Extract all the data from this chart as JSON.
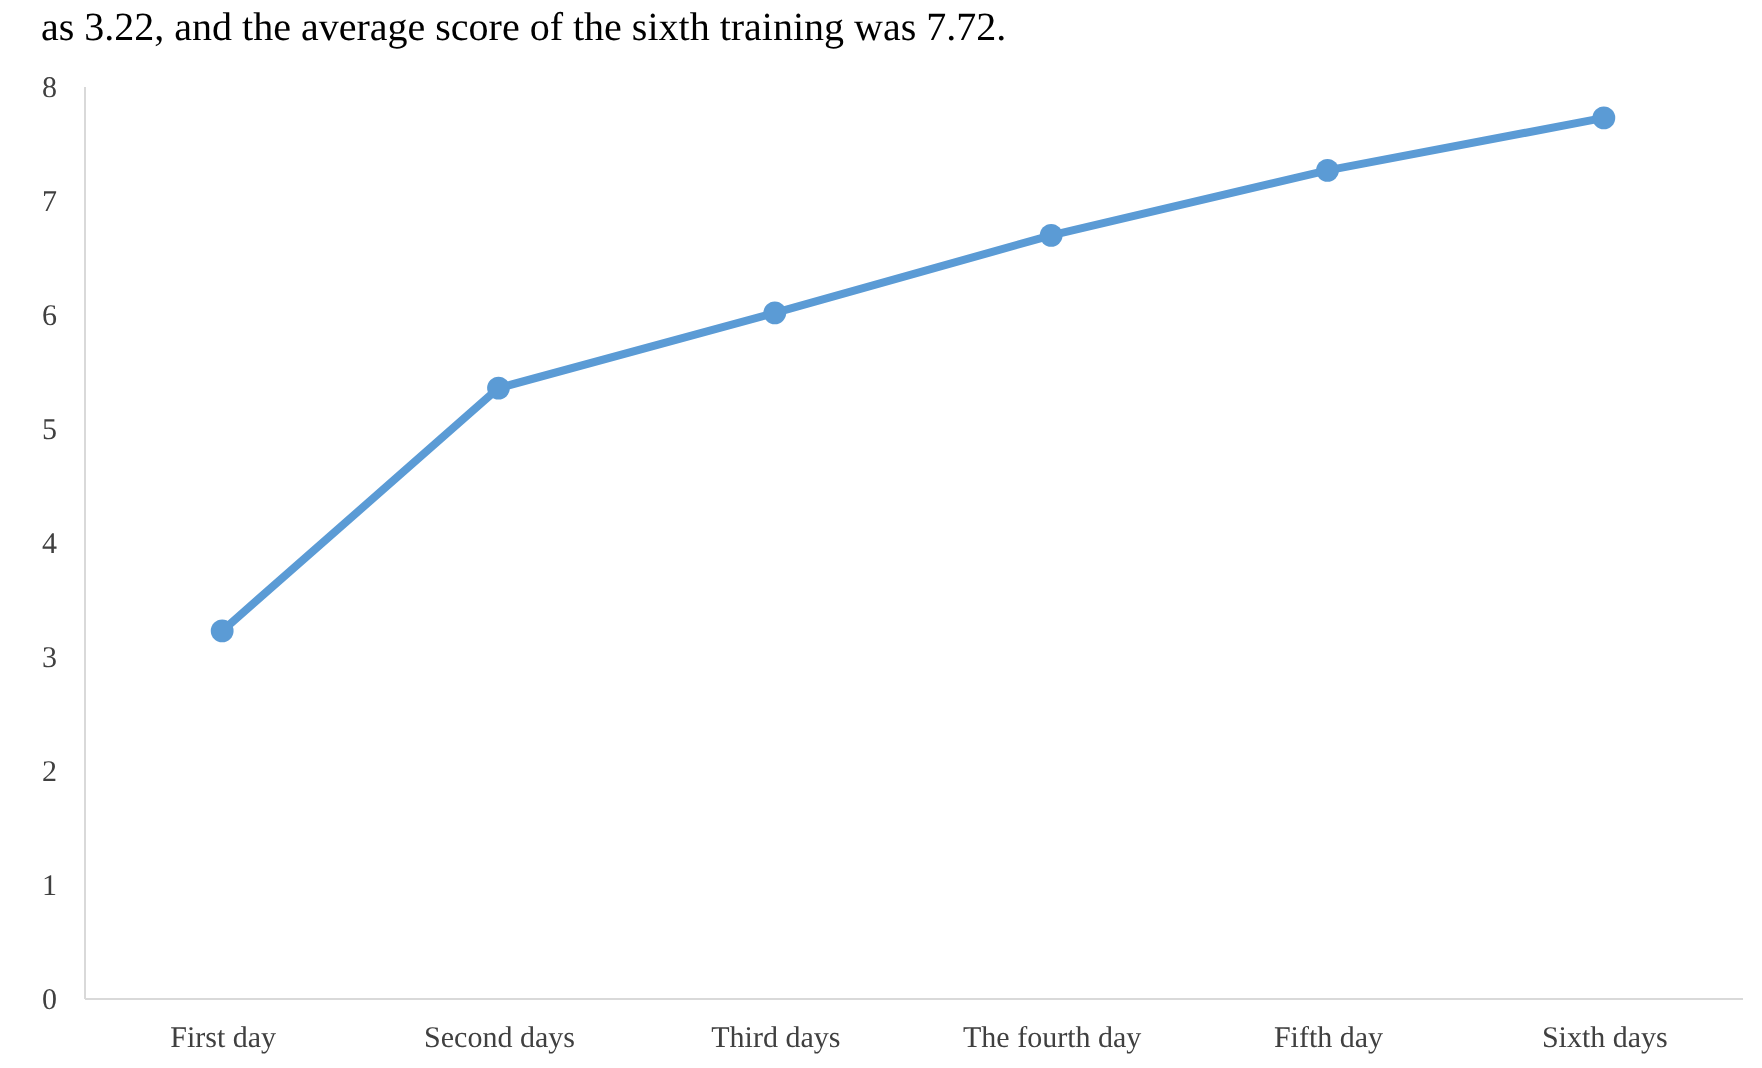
{
  "chart_data": {
    "type": "line",
    "title": "as 3.22, and the average score of the sixth training was 7.72.",
    "categories": [
      "First day",
      "Second days",
      "Third days",
      "The fourth day",
      "Fifth day",
      "Sixth days"
    ],
    "series": [
      {
        "color": "#5b9bd5",
        "values": [
          3.22,
          5.35,
          6.01,
          6.69,
          7.26,
          7.72
        ]
      }
    ],
    "ylim": [
      0,
      8
    ],
    "yticks": [
      0,
      1,
      2,
      3,
      4,
      5,
      6,
      7,
      8
    ],
    "grid": false,
    "legend": false,
    "marker": "circle",
    "line_style": "solid"
  }
}
